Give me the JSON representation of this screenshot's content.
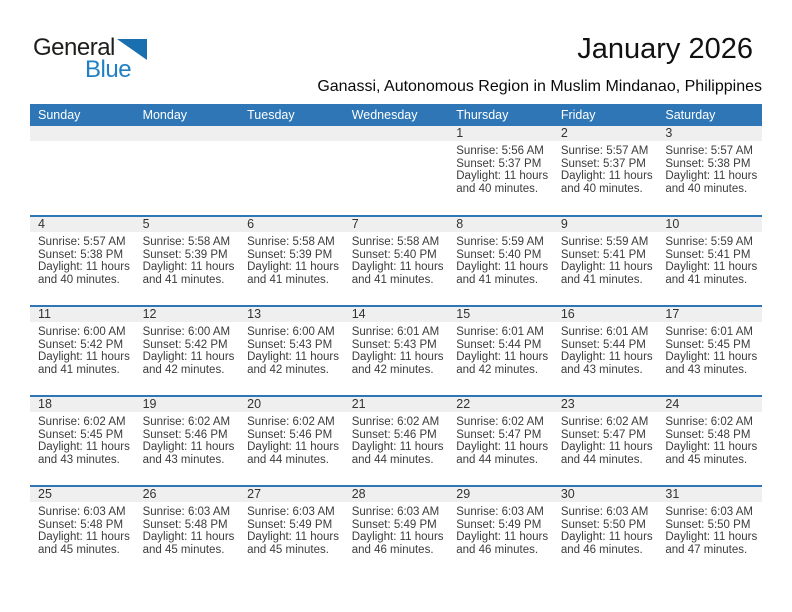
{
  "logo": {
    "part1": "General",
    "part2": "Blue",
    "triangle_color": "#1a6faf",
    "text_blue": "#2180c3"
  },
  "header": {
    "title": "January 2026",
    "subtitle": "Ganassi, Autonomous Region in Muslim Mindanao, Philippines"
  },
  "colors": {
    "weekday_header_bg": "#2e76b6",
    "week_separator": "#2e76b6",
    "day_number_band_bg": "#efefef",
    "detail_text": "#3c3c3c"
  },
  "calendar": {
    "weekdays": [
      "Sunday",
      "Monday",
      "Tuesday",
      "Wednesday",
      "Thursday",
      "Friday",
      "Saturday"
    ],
    "labels": {
      "sunrise": "Sunrise:",
      "sunset": "Sunset:",
      "daylight": "Daylight:"
    },
    "weeks": [
      [
        null,
        null,
        null,
        null,
        {
          "day": "1",
          "sunrise": "5:56 AM",
          "sunset": "5:37 PM",
          "daylight": "11 hours and 40 minutes."
        },
        {
          "day": "2",
          "sunrise": "5:57 AM",
          "sunset": "5:37 PM",
          "daylight": "11 hours and 40 minutes."
        },
        {
          "day": "3",
          "sunrise": "5:57 AM",
          "sunset": "5:38 PM",
          "daylight": "11 hours and 40 minutes."
        }
      ],
      [
        {
          "day": "4",
          "sunrise": "5:57 AM",
          "sunset": "5:38 PM",
          "daylight": "11 hours and 40 minutes."
        },
        {
          "day": "5",
          "sunrise": "5:58 AM",
          "sunset": "5:39 PM",
          "daylight": "11 hours and 41 minutes."
        },
        {
          "day": "6",
          "sunrise": "5:58 AM",
          "sunset": "5:39 PM",
          "daylight": "11 hours and 41 minutes."
        },
        {
          "day": "7",
          "sunrise": "5:58 AM",
          "sunset": "5:40 PM",
          "daylight": "11 hours and 41 minutes."
        },
        {
          "day": "8",
          "sunrise": "5:59 AM",
          "sunset": "5:40 PM",
          "daylight": "11 hours and 41 minutes."
        },
        {
          "day": "9",
          "sunrise": "5:59 AM",
          "sunset": "5:41 PM",
          "daylight": "11 hours and 41 minutes."
        },
        {
          "day": "10",
          "sunrise": "5:59 AM",
          "sunset": "5:41 PM",
          "daylight": "11 hours and 41 minutes."
        }
      ],
      [
        {
          "day": "11",
          "sunrise": "6:00 AM",
          "sunset": "5:42 PM",
          "daylight": "11 hours and 41 minutes."
        },
        {
          "day": "12",
          "sunrise": "6:00 AM",
          "sunset": "5:42 PM",
          "daylight": "11 hours and 42 minutes."
        },
        {
          "day": "13",
          "sunrise": "6:00 AM",
          "sunset": "5:43 PM",
          "daylight": "11 hours and 42 minutes."
        },
        {
          "day": "14",
          "sunrise": "6:01 AM",
          "sunset": "5:43 PM",
          "daylight": "11 hours and 42 minutes."
        },
        {
          "day": "15",
          "sunrise": "6:01 AM",
          "sunset": "5:44 PM",
          "daylight": "11 hours and 42 minutes."
        },
        {
          "day": "16",
          "sunrise": "6:01 AM",
          "sunset": "5:44 PM",
          "daylight": "11 hours and 43 minutes."
        },
        {
          "day": "17",
          "sunrise": "6:01 AM",
          "sunset": "5:45 PM",
          "daylight": "11 hours and 43 minutes."
        }
      ],
      [
        {
          "day": "18",
          "sunrise": "6:02 AM",
          "sunset": "5:45 PM",
          "daylight": "11 hours and 43 minutes."
        },
        {
          "day": "19",
          "sunrise": "6:02 AM",
          "sunset": "5:46 PM",
          "daylight": "11 hours and 43 minutes."
        },
        {
          "day": "20",
          "sunrise": "6:02 AM",
          "sunset": "5:46 PM",
          "daylight": "11 hours and 44 minutes."
        },
        {
          "day": "21",
          "sunrise": "6:02 AM",
          "sunset": "5:46 PM",
          "daylight": "11 hours and 44 minutes."
        },
        {
          "day": "22",
          "sunrise": "6:02 AM",
          "sunset": "5:47 PM",
          "daylight": "11 hours and 44 minutes."
        },
        {
          "day": "23",
          "sunrise": "6:02 AM",
          "sunset": "5:47 PM",
          "daylight": "11 hours and 44 minutes."
        },
        {
          "day": "24",
          "sunrise": "6:02 AM",
          "sunset": "5:48 PM",
          "daylight": "11 hours and 45 minutes."
        }
      ],
      [
        {
          "day": "25",
          "sunrise": "6:03 AM",
          "sunset": "5:48 PM",
          "daylight": "11 hours and 45 minutes."
        },
        {
          "day": "26",
          "sunrise": "6:03 AM",
          "sunset": "5:48 PM",
          "daylight": "11 hours and 45 minutes."
        },
        {
          "day": "27",
          "sunrise": "6:03 AM",
          "sunset": "5:49 PM",
          "daylight": "11 hours and 45 minutes."
        },
        {
          "day": "28",
          "sunrise": "6:03 AM",
          "sunset": "5:49 PM",
          "daylight": "11 hours and 46 minutes."
        },
        {
          "day": "29",
          "sunrise": "6:03 AM",
          "sunset": "5:49 PM",
          "daylight": "11 hours and 46 minutes."
        },
        {
          "day": "30",
          "sunrise": "6:03 AM",
          "sunset": "5:50 PM",
          "daylight": "11 hours and 46 minutes."
        },
        {
          "day": "31",
          "sunrise": "6:03 AM",
          "sunset": "5:50 PM",
          "daylight": "11 hours and 47 minutes."
        }
      ]
    ]
  }
}
